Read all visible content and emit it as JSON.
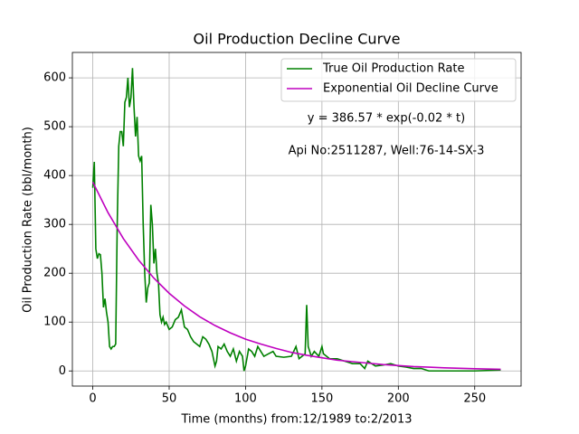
{
  "chart_data": {
    "type": "line",
    "title": "Oil Production Decline Curve",
    "x_label": "Time (months) from:12/1989 to:2/2013",
    "y_label": "Oil Production Rate (bbl/month)",
    "annotations": [
      "y = 386.57 * exp(-0.02 * t)",
      "Api No:2511287, Well:76-14-SX-3"
    ],
    "xlim": [
      -13.35,
      280.35
    ],
    "ylim": [
      -31,
      652
    ],
    "xticks": [
      0,
      50,
      100,
      150,
      200,
      250
    ],
    "yticks": [
      0,
      100,
      200,
      300,
      400,
      500,
      600
    ],
    "grid": true,
    "legend": "upper right",
    "series": [
      {
        "name": "True Oil Production Rate",
        "color": "#008000",
        "x": [
          0,
          1,
          2,
          3,
          4,
          5,
          6,
          7,
          8,
          9,
          10,
          11,
          12,
          13,
          14,
          15,
          16,
          17,
          18,
          19,
          20,
          21,
          22,
          23,
          24,
          25,
          26,
          27,
          28,
          29,
          30,
          31,
          32,
          33,
          34,
          35,
          36,
          37,
          38,
          39,
          40,
          41,
          42,
          43,
          44,
          45,
          46,
          47,
          48,
          50,
          52,
          54,
          56,
          58,
          60,
          62,
          64,
          66,
          68,
          70,
          72,
          74,
          76,
          78,
          80,
          81,
          82,
          84,
          86,
          88,
          90,
          92,
          94,
          96,
          98,
          99,
          100,
          102,
          104,
          106,
          108,
          110,
          112,
          115,
          118,
          120,
          125,
          130,
          133,
          135,
          137,
          139,
          140,
          141,
          143,
          145,
          148,
          150,
          151,
          153,
          155,
          160,
          165,
          170,
          175,
          178,
          180,
          185,
          190,
          195,
          200,
          205,
          210,
          215,
          220,
          230,
          240,
          250,
          267
        ],
        "values": [
          375,
          428,
          250,
          230,
          240,
          238,
          200,
          130,
          148,
          120,
          100,
          50,
          45,
          50,
          50,
          55,
          300,
          460,
          490,
          490,
          460,
          550,
          560,
          600,
          540,
          560,
          620,
          540,
          480,
          520,
          440,
          430,
          440,
          300,
          200,
          140,
          170,
          180,
          340,
          300,
          220,
          250,
          200,
          180,
          115,
          100,
          110,
          95,
          100,
          85,
          90,
          105,
          110,
          125,
          90,
          85,
          70,
          60,
          55,
          50,
          70,
          65,
          55,
          40,
          10,
          20,
          50,
          45,
          55,
          40,
          30,
          45,
          20,
          40,
          30,
          0,
          10,
          45,
          40,
          30,
          50,
          40,
          30,
          35,
          40,
          30,
          28,
          30,
          50,
          25,
          30,
          35,
          135,
          50,
          30,
          40,
          30,
          50,
          35,
          30,
          25,
          25,
          20,
          15,
          15,
          5,
          20,
          10,
          12,
          15,
          10,
          8,
          5,
          5,
          0,
          0,
          0,
          0,
          2
        ]
      },
      {
        "name": "Exponential Oil Decline Curve",
        "color": "#bf00bf",
        "x": [
          0,
          10,
          20,
          30,
          40,
          50,
          60,
          70,
          80,
          90,
          100,
          110,
          120,
          130,
          140,
          150,
          160,
          170,
          180,
          190,
          200,
          210,
          220,
          230,
          240,
          250,
          260,
          267
        ],
        "values": [
          386.57,
          324,
          271,
          227,
          190,
          159,
          133,
          111,
          93,
          78,
          65,
          55,
          46,
          38,
          32,
          27,
          22,
          19,
          16,
          13,
          11,
          9,
          7.7,
          6.4,
          5.4,
          4.5,
          3.8,
          3.3
        ]
      }
    ]
  }
}
